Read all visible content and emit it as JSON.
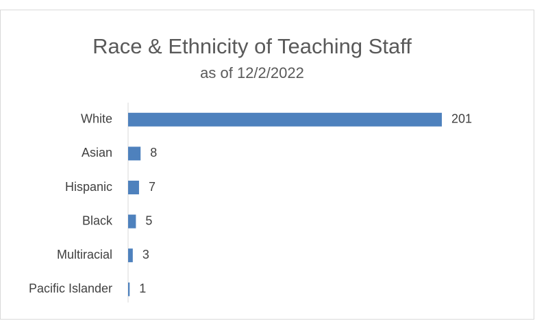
{
  "chart_data": {
    "type": "bar",
    "orientation": "horizontal",
    "title": "Race & Ethnicity of Teaching Staff",
    "subtitle": "as of 12/2/2022",
    "categories": [
      "White",
      "Asian",
      "Hispanic",
      "Black",
      "Multiracial",
      "Pacific Islander"
    ],
    "values": [
      201,
      8,
      7,
      5,
      3,
      1
    ],
    "color": "#4e81bd"
  }
}
